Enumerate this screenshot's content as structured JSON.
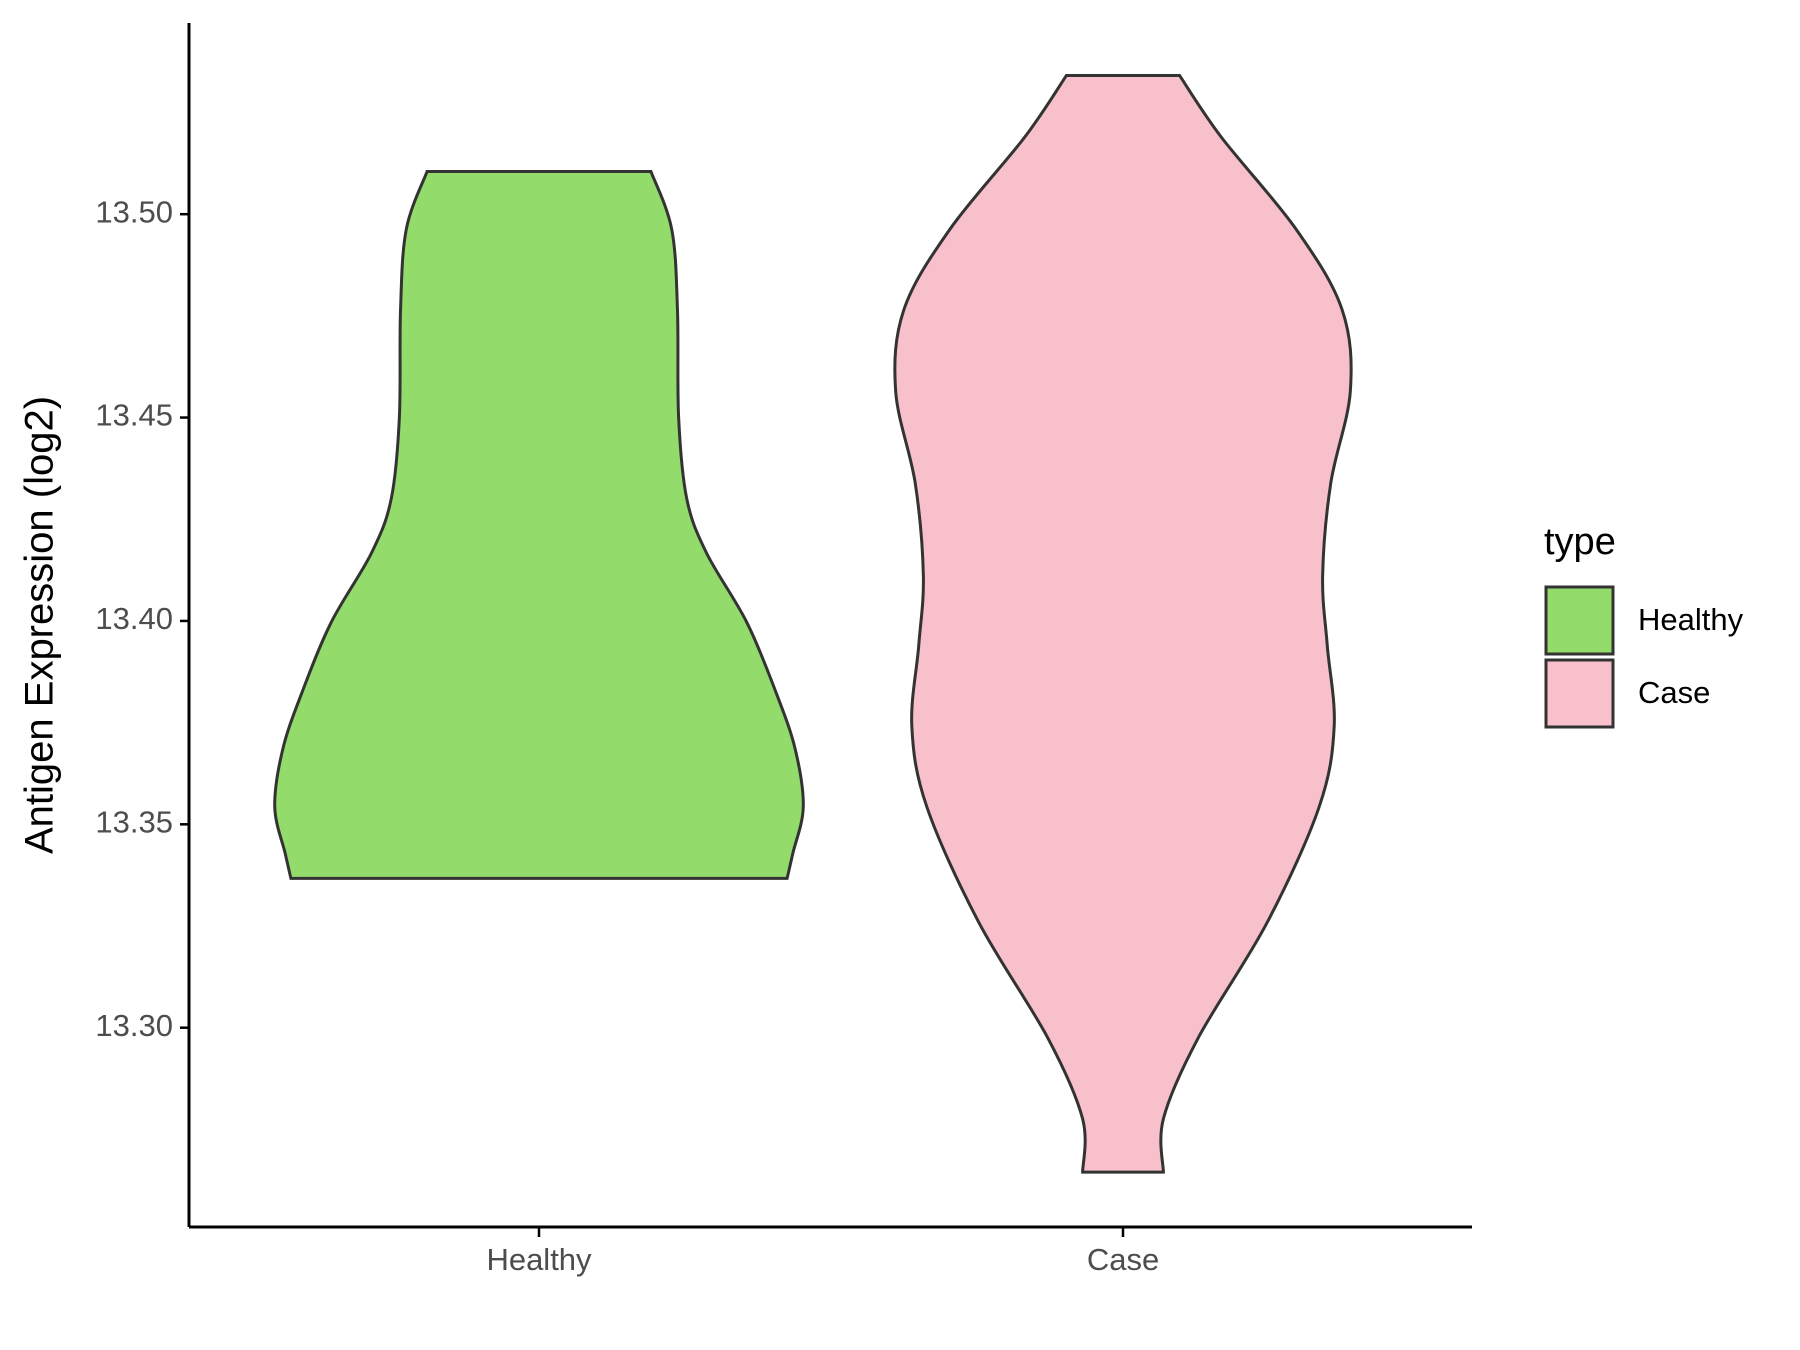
{
  "chart_data": {
    "type": "violin",
    "y_label": "Antigen Expression (log2)",
    "legend_title": "type",
    "ylim": [
      13.251,
      13.547
    ],
    "yticks": [
      {
        "value": 13.3,
        "label": "13.30"
      },
      {
        "value": 13.35,
        "label": "13.35"
      },
      {
        "value": 13.4,
        "label": "13.40"
      },
      {
        "value": 13.45,
        "label": "13.45"
      },
      {
        "value": 13.5,
        "label": "13.50"
      }
    ],
    "categories": [
      "Healthy",
      "Case"
    ],
    "series": [
      {
        "name": "Healthy",
        "color": "#93db6b",
        "y": [
          13.5105,
          13.4963,
          13.4764,
          13.45,
          13.4301,
          13.4168,
          13.3997,
          13.3827,
          13.3685,
          13.3543,
          13.3429,
          13.3367
        ],
        "density": [
          0.97,
          1.15,
          1.2,
          1.21,
          1.28,
          1.45,
          1.8,
          2.05,
          2.22,
          2.29,
          2.2,
          2.15
        ]
      },
      {
        "name": "Case",
        "color": "#f7c0cb",
        "y": [
          13.5341,
          13.519,
          13.4963,
          13.4764,
          13.4565,
          13.4338,
          13.4111,
          13.394,
          13.3741,
          13.3543,
          13.3259,
          13.2974,
          13.2776,
          13.2645
        ],
        "density": [
          0.49,
          0.85,
          1.5,
          1.9,
          1.97,
          1.8,
          1.73,
          1.77,
          1.83,
          1.7,
          1.25,
          0.65,
          0.35,
          0.35
        ]
      }
    ]
  }
}
